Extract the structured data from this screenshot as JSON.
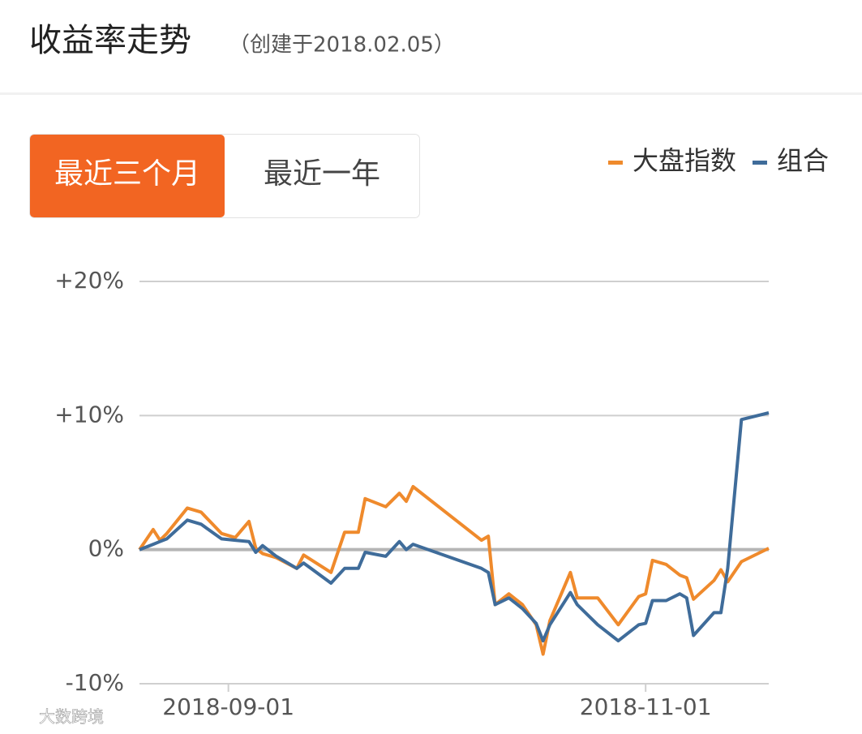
{
  "header": {
    "title": "收益率走势",
    "subtitle": "（创建于2018.02.05）"
  },
  "tabs": {
    "items": [
      "最近三个月",
      "最近一年"
    ],
    "active": 0
  },
  "watermark": "大数跨境",
  "chart_data": {
    "type": "line",
    "x": [
      "2018-08-19",
      "2018-08-21",
      "2018-08-22",
      "2018-08-23",
      "2018-08-26",
      "2018-08-28",
      "2018-08-31",
      "2018-09-02",
      "2018-09-04",
      "2018-09-05",
      "2018-09-06",
      "2018-09-08",
      "2018-09-11",
      "2018-09-12",
      "2018-09-16",
      "2018-09-18",
      "2018-09-20",
      "2018-09-21",
      "2018-09-24",
      "2018-09-26",
      "2018-09-27",
      "2018-09-28",
      "2018-10-08",
      "2018-10-09",
      "2018-10-10",
      "2018-10-12",
      "2018-10-14",
      "2018-10-16",
      "2018-10-17",
      "2018-10-18",
      "2018-10-21",
      "2018-10-22",
      "2018-10-25",
      "2018-10-28",
      "2018-10-31",
      "2018-11-01",
      "2018-11-02",
      "2018-11-04",
      "2018-11-06",
      "2018-11-07",
      "2018-11-08",
      "2018-11-11",
      "2018-11-12",
      "2018-11-13",
      "2018-11-15",
      "2018-11-19"
    ],
    "series": [
      {
        "name": "大盘指数",
        "color": "#ef8a2c",
        "values": [
          0,
          1.5,
          0.7,
          1.2,
          3.1,
          2.8,
          1.2,
          0.9,
          2.1,
          0.1,
          -0.3,
          -0.6,
          -1.4,
          -0.4,
          -1.7,
          1.3,
          1.3,
          3.8,
          3.2,
          4.2,
          3.6,
          4.7,
          0.7,
          1.0,
          -4.1,
          -3.3,
          -4.1,
          -5.6,
          -7.8,
          -5.3,
          -1.7,
          -3.6,
          -3.6,
          -5.6,
          -3.5,
          -3.3,
          -0.8,
          -1.1,
          -1.9,
          -2.1,
          -3.7,
          -2.3,
          -1.5,
          -2.4,
          -0.9,
          0.1
        ]
      },
      {
        "name": "组合",
        "color": "#3f6c9a",
        "values": [
          0,
          0.4,
          0.6,
          0.8,
          2.2,
          1.9,
          0.8,
          0.7,
          0.6,
          -0.2,
          0.3,
          -0.5,
          -1.4,
          -1.0,
          -2.5,
          -1.4,
          -1.4,
          -0.2,
          -0.5,
          0.6,
          0,
          0.4,
          -1.4,
          -1.7,
          -4.1,
          -3.6,
          -4.4,
          -5.5,
          -6.8,
          -5.6,
          -3.2,
          -4.1,
          -5.6,
          -6.8,
          -5.6,
          -5.5,
          -3.8,
          -3.8,
          -3.3,
          -3.6,
          -6.4,
          -4.7,
          -4.7,
          -1.4,
          9.7,
          10.2
        ]
      }
    ],
    "xlim": [
      "2018-08-19",
      "2018-11-19"
    ],
    "xticks": [
      "2018-09-01",
      "2018-11-01"
    ],
    "ylim": [
      -10,
      20
    ],
    "yticks": [
      {
        "value": 20,
        "label": "+20%"
      },
      {
        "value": 10,
        "label": "+10%"
      },
      {
        "value": 0,
        "label": "0%"
      },
      {
        "value": -10,
        "label": "-10%"
      }
    ],
    "grid": true,
    "legend": "top-right"
  }
}
